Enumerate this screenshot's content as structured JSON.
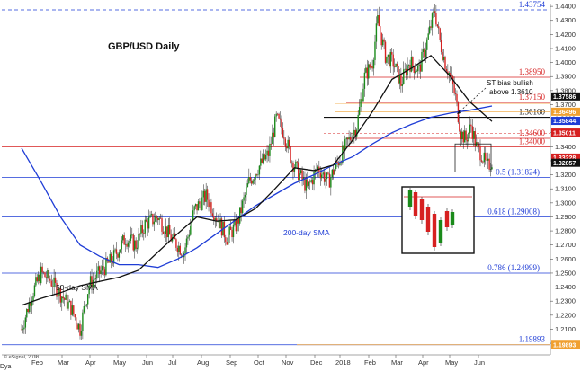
{
  "chart_data": {
    "type": "candlestick",
    "title": "GBP/USD Daily",
    "source_note": "© eSignal, 2018",
    "x_ticks": [
      "Feb",
      "Mar",
      "Apr",
      "May",
      "Jun",
      "Jul",
      "Aug",
      "Sep",
      "Oct",
      "Nov",
      "Dec",
      "2018",
      "Feb",
      "Mar",
      "Apr",
      "May",
      "Jun"
    ],
    "x_corner_label": "Dya",
    "ylim": [
      1.193,
      1.442
    ],
    "y_ticks": [
      1.2,
      1.21,
      1.22,
      1.23,
      1.24,
      1.25,
      1.26,
      1.27,
      1.28,
      1.29,
      1.3,
      1.31,
      1.32,
      1.33,
      1.34,
      1.35,
      1.36,
      1.37,
      1.38,
      1.39,
      1.4,
      1.41,
      1.42,
      1.43,
      1.44
    ],
    "y_tick_labels": [
      "1.2000",
      "1.2100",
      "1.2200",
      "1.2300",
      "1.2400",
      "1.2500",
      "1.2600",
      "1.2700",
      "1.2800",
      "1.2900",
      "1.3000",
      "1.3100",
      "1.3200",
      "1.3300",
      "1.3400",
      "1.3500",
      "1.3600",
      "1.3700",
      "1.3800",
      "1.3900",
      "1.4000",
      "1.4100",
      "1.4200",
      "1.4300",
      "1.4400"
    ],
    "price_path": [
      [
        0,
        1.21
      ],
      [
        8,
        1.235
      ],
      [
        15,
        1.25
      ],
      [
        22,
        1.245
      ],
      [
        30,
        1.235
      ],
      [
        38,
        1.225
      ],
      [
        45,
        1.21
      ],
      [
        52,
        1.242
      ],
      [
        60,
        1.25
      ],
      [
        70,
        1.26
      ],
      [
        80,
        1.275
      ],
      [
        88,
        1.27
      ],
      [
        95,
        1.285
      ],
      [
        105,
        1.29
      ],
      [
        115,
        1.275
      ],
      [
        125,
        1.265
      ],
      [
        133,
        1.295
      ],
      [
        142,
        1.305
      ],
      [
        150,
        1.29
      ],
      [
        158,
        1.275
      ],
      [
        166,
        1.285
      ],
      [
        175,
        1.315
      ],
      [
        182,
        1.325
      ],
      [
        190,
        1.335
      ],
      [
        196,
        1.36
      ],
      [
        202,
        1.35
      ],
      [
        208,
        1.33
      ],
      [
        214,
        1.32
      ],
      [
        220,
        1.31
      ],
      [
        228,
        1.325
      ],
      [
        236,
        1.315
      ],
      [
        244,
        1.33
      ],
      [
        252,
        1.345
      ],
      [
        258,
        1.355
      ],
      [
        264,
        1.39
      ],
      [
        270,
        1.4
      ],
      [
        274,
        1.43
      ],
      [
        280,
        1.405
      ],
      [
        286,
        1.4
      ],
      [
        292,
        1.385
      ],
      [
        298,
        1.4
      ],
      [
        306,
        1.395
      ],
      [
        312,
        1.415
      ],
      [
        316,
        1.43
      ],
      [
        318,
        1.437
      ],
      [
        322,
        1.415
      ],
      [
        326,
        1.4
      ],
      [
        330,
        1.39
      ],
      [
        334,
        1.375
      ],
      [
        338,
        1.35
      ],
      [
        342,
        1.345
      ],
      [
        346,
        1.355
      ],
      [
        350,
        1.34
      ],
      [
        354,
        1.335
      ],
      [
        358,
        1.325
      ],
      [
        362,
        1.33
      ]
    ],
    "series": [
      {
        "name": "200-day SMA",
        "color": "#1f3dd6",
        "values": [
          [
            0,
            1.339
          ],
          [
            15,
            1.315
          ],
          [
            30,
            1.29
          ],
          [
            45,
            1.27
          ],
          [
            60,
            1.262
          ],
          [
            75,
            1.256
          ],
          [
            90,
            1.256
          ],
          [
            105,
            1.254
          ],
          [
            120,
            1.26
          ],
          [
            135,
            1.268
          ],
          [
            150,
            1.278
          ],
          [
            165,
            1.288
          ],
          [
            180,
            1.298
          ],
          [
            195,
            1.306
          ],
          [
            210,
            1.314
          ],
          [
            225,
            1.32
          ],
          [
            240,
            1.327
          ],
          [
            255,
            1.333
          ],
          [
            270,
            1.342
          ],
          [
            285,
            1.35
          ],
          [
            300,
            1.356
          ],
          [
            315,
            1.361
          ],
          [
            330,
            1.364
          ],
          [
            345,
            1.366
          ],
          [
            362,
            1.369
          ]
        ]
      },
      {
        "name": "50-day SMA",
        "color": "#111111",
        "values": [
          [
            0,
            1.227
          ],
          [
            15,
            1.232
          ],
          [
            30,
            1.236
          ],
          [
            45,
            1.241
          ],
          [
            60,
            1.244
          ],
          [
            75,
            1.247
          ],
          [
            90,
            1.252
          ],
          [
            105,
            1.265
          ],
          [
            120,
            1.278
          ],
          [
            135,
            1.29
          ],
          [
            150,
            1.287
          ],
          [
            165,
            1.288
          ],
          [
            180,
            1.296
          ],
          [
            195,
            1.31
          ],
          [
            210,
            1.325
          ],
          [
            225,
            1.323
          ],
          [
            240,
            1.327
          ],
          [
            255,
            1.345
          ],
          [
            270,
            1.365
          ],
          [
            285,
            1.388
          ],
          [
            300,
            1.396
          ],
          [
            315,
            1.405
          ],
          [
            330,
            1.39
          ],
          [
            345,
            1.372
          ],
          [
            362,
            1.358
          ]
        ]
      }
    ],
    "levels": [
      {
        "label": "1.43754",
        "value": 1.43754,
        "color": "#1f3dd6",
        "style": "dashed"
      },
      {
        "label": "1.38950",
        "value": 1.3895,
        "color": "#d62020",
        "style": "solid"
      },
      {
        "label": "1.37150",
        "value": 1.3715,
        "color": "#d62020",
        "style": "solid"
      },
      {
        "label": "1.36100",
        "value": 1.361,
        "color": "#111111",
        "style": "solid"
      },
      {
        "label": "1.34600",
        "value": 1.346,
        "color": "#d62020",
        "style": "solid"
      },
      {
        "label": "1.34000",
        "value": 1.34,
        "color": "#d62020",
        "style": "solid"
      },
      {
        "label": "0.5 (1.31824)",
        "value": 1.31824,
        "color": "#1f3dd6",
        "style": "solid"
      },
      {
        "label": "0.618 (1.29008)",
        "value": 1.29008,
        "color": "#1f3dd6",
        "style": "solid"
      },
      {
        "label": "0.786 (1.24999)",
        "value": 1.24999,
        "color": "#1f3dd6",
        "style": "solid"
      },
      {
        "label": "1.19893",
        "value": 1.19893,
        "color": "#1f3dd6",
        "style": "solid"
      }
    ],
    "right_tags": [
      {
        "text": "1.37586",
        "value": 1.37586,
        "bg": "#111111"
      },
      {
        "text": "1.36496",
        "value": 1.36496,
        "bg": "#f0a030"
      },
      {
        "text": "1.35844",
        "value": 1.35844,
        "bg": "#1f3dd6"
      },
      {
        "text": "1.35011",
        "value": 1.35011,
        "bg": "#d62020"
      },
      {
        "text": "1.33228",
        "value": 1.33228,
        "bg": "#d62020"
      },
      {
        "text": "1.32857",
        "value": 1.32857,
        "bg": "#111111"
      },
      {
        "text": "1.19893",
        "value": 1.19893,
        "bg": "#f0a030"
      }
    ],
    "annotations": {
      "sma200": "200-day SMA",
      "sma50": "50-day SMA",
      "st_bias_line1": "ST bias bullish",
      "st_bias_line2": "above 1.3610"
    },
    "colors": {
      "up": "#1a8a1a",
      "down": "#d62020",
      "accent": "#1f3dd6"
    }
  }
}
